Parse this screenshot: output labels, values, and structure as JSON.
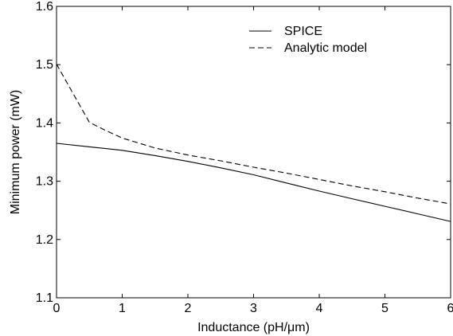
{
  "chart_data": {
    "type": "line",
    "title": "",
    "xlabel": "Inductance (pH/μm)",
    "ylabel": "Minimum power (mW)",
    "xlim": [
      0,
      6
    ],
    "ylim": [
      1.1,
      1.6
    ],
    "xticks": [
      0,
      1,
      2,
      3,
      4,
      5,
      6
    ],
    "xtick_labels": [
      "0",
      "1",
      "2",
      "3",
      "4",
      "5",
      "6"
    ],
    "yticks": [
      1.1,
      1.2,
      1.3,
      1.4,
      1.5,
      1.6
    ],
    "ytick_labels": [
      "1.1",
      "1.2",
      "1.3",
      "1.4",
      "1.5",
      "1.6"
    ],
    "grid": false,
    "legend_position": "top-right",
    "series": [
      {
        "name": "SPICE",
        "style": "solid",
        "color": "#000000",
        "x": [
          0,
          0.5,
          1,
          1.5,
          2,
          2.5,
          3,
          3.5,
          4,
          4.5,
          5,
          5.5,
          6
        ],
        "y": [
          1.365,
          1.359,
          1.353,
          1.344,
          1.334,
          1.323,
          1.311,
          1.297,
          1.283,
          1.27,
          1.257,
          1.244,
          1.231
        ]
      },
      {
        "name": "Analytic model",
        "style": "dashed",
        "color": "#000000",
        "x": [
          0,
          0.25,
          0.5,
          0.75,
          1,
          1.5,
          2,
          2.5,
          3,
          3.5,
          4,
          4.5,
          5,
          5.5,
          6
        ],
        "y": [
          1.501,
          1.451,
          1.401,
          1.387,
          1.374,
          1.357,
          1.345,
          1.335,
          1.324,
          1.314,
          1.303,
          1.292,
          1.282,
          1.271,
          1.261
        ]
      }
    ]
  }
}
